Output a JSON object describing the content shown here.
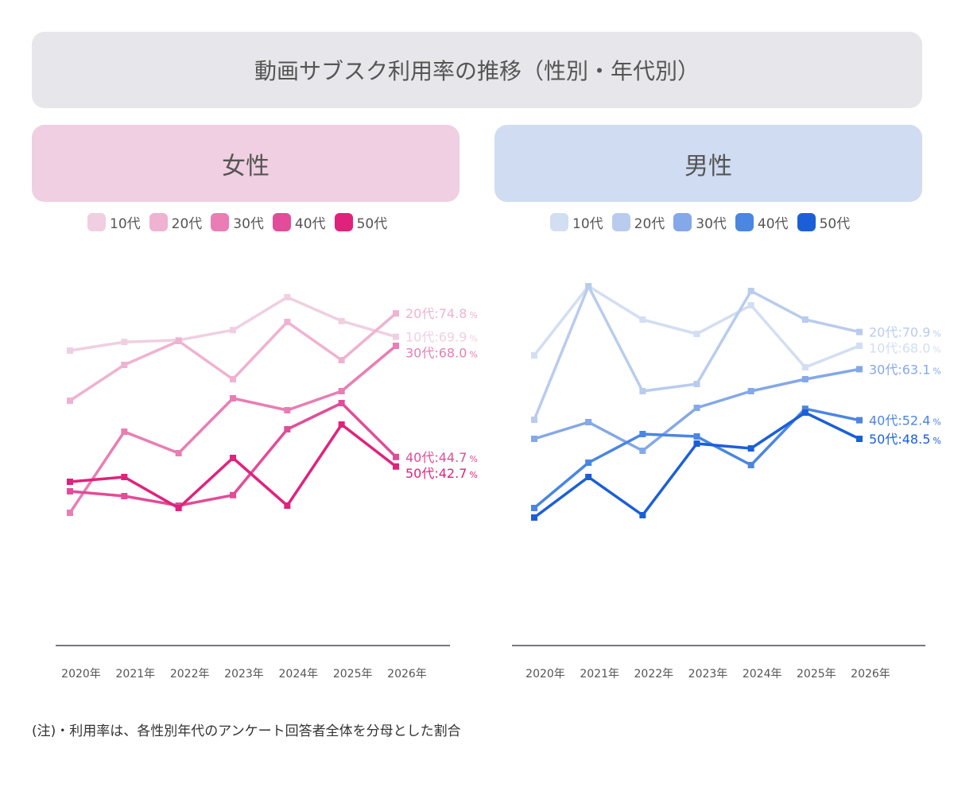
{
  "title": "動画サブスク利用率の推移（性別・年代別）",
  "note": "(注)・利用率は、各性別年代のアンケート回答者全体を分母とした割合",
  "chart_data": [
    {
      "type": "line",
      "panel_title": "女性",
      "x": [
        "2020年",
        "2021年",
        "2022年",
        "2023年",
        "2024年",
        "2025年",
        "2026年"
      ],
      "series": [
        {
          "name": "10代",
          "color": "#f0cfe2",
          "values": [
            67.0,
            68.8,
            69.2,
            71.3,
            78.2,
            73.2,
            69.9
          ],
          "end_label": "10代:69.9"
        },
        {
          "name": "20代",
          "color": "#efb2d1",
          "values": [
            56.5,
            64.0,
            69.0,
            61.0,
            73.0,
            65.0,
            74.8
          ],
          "end_label": "20代:74.8"
        },
        {
          "name": "30代",
          "color": "#e97db4",
          "values": [
            33.0,
            50.0,
            45.5,
            57.0,
            54.5,
            58.5,
            68.0
          ],
          "end_label": "30代:68.0"
        },
        {
          "name": "40代",
          "color": "#e24c98",
          "values": [
            37.5,
            36.5,
            34.5,
            36.7,
            50.5,
            56.0,
            44.7
          ],
          "end_label": "40代:44.7"
        },
        {
          "name": "50代",
          "color": "#e0227d",
          "values": [
            39.5,
            40.5,
            34.0,
            44.5,
            34.5,
            51.5,
            42.7
          ],
          "end_label": "50代:42.7"
        }
      ]
    },
    {
      "type": "line",
      "panel_title": "男性",
      "x": [
        "2020年",
        "2021年",
        "2022年",
        "2023年",
        "2024年",
        "2025年",
        "2026年"
      ],
      "series": [
        {
          "name": "10代",
          "color": "#d2def2",
          "values": [
            66.0,
            80.5,
            73.5,
            70.5,
            76.5,
            63.5,
            68.0
          ],
          "end_label": "10代:68.0"
        },
        {
          "name": "20代",
          "color": "#b9ccee",
          "values": [
            52.5,
            80.5,
            58.5,
            60.0,
            79.5,
            73.5,
            70.9
          ],
          "end_label": "20代:70.9"
        },
        {
          "name": "30代",
          "color": "#84a8e8",
          "values": [
            48.5,
            52.0,
            46.0,
            55.0,
            58.5,
            61.0,
            63.1
          ],
          "end_label": "30代:63.1"
        },
        {
          "name": "40代",
          "color": "#4a86e2",
          "values": [
            34.0,
            43.5,
            49.5,
            49.0,
            43.0,
            54.8,
            52.4
          ],
          "end_label": "40代:52.4"
        },
        {
          "name": "50代",
          "color": "#1b5fd8",
          "values": [
            32.0,
            40.5,
            32.5,
            47.5,
            46.5,
            54.0,
            48.5
          ],
          "end_label": "50代:48.5"
        }
      ]
    }
  ]
}
